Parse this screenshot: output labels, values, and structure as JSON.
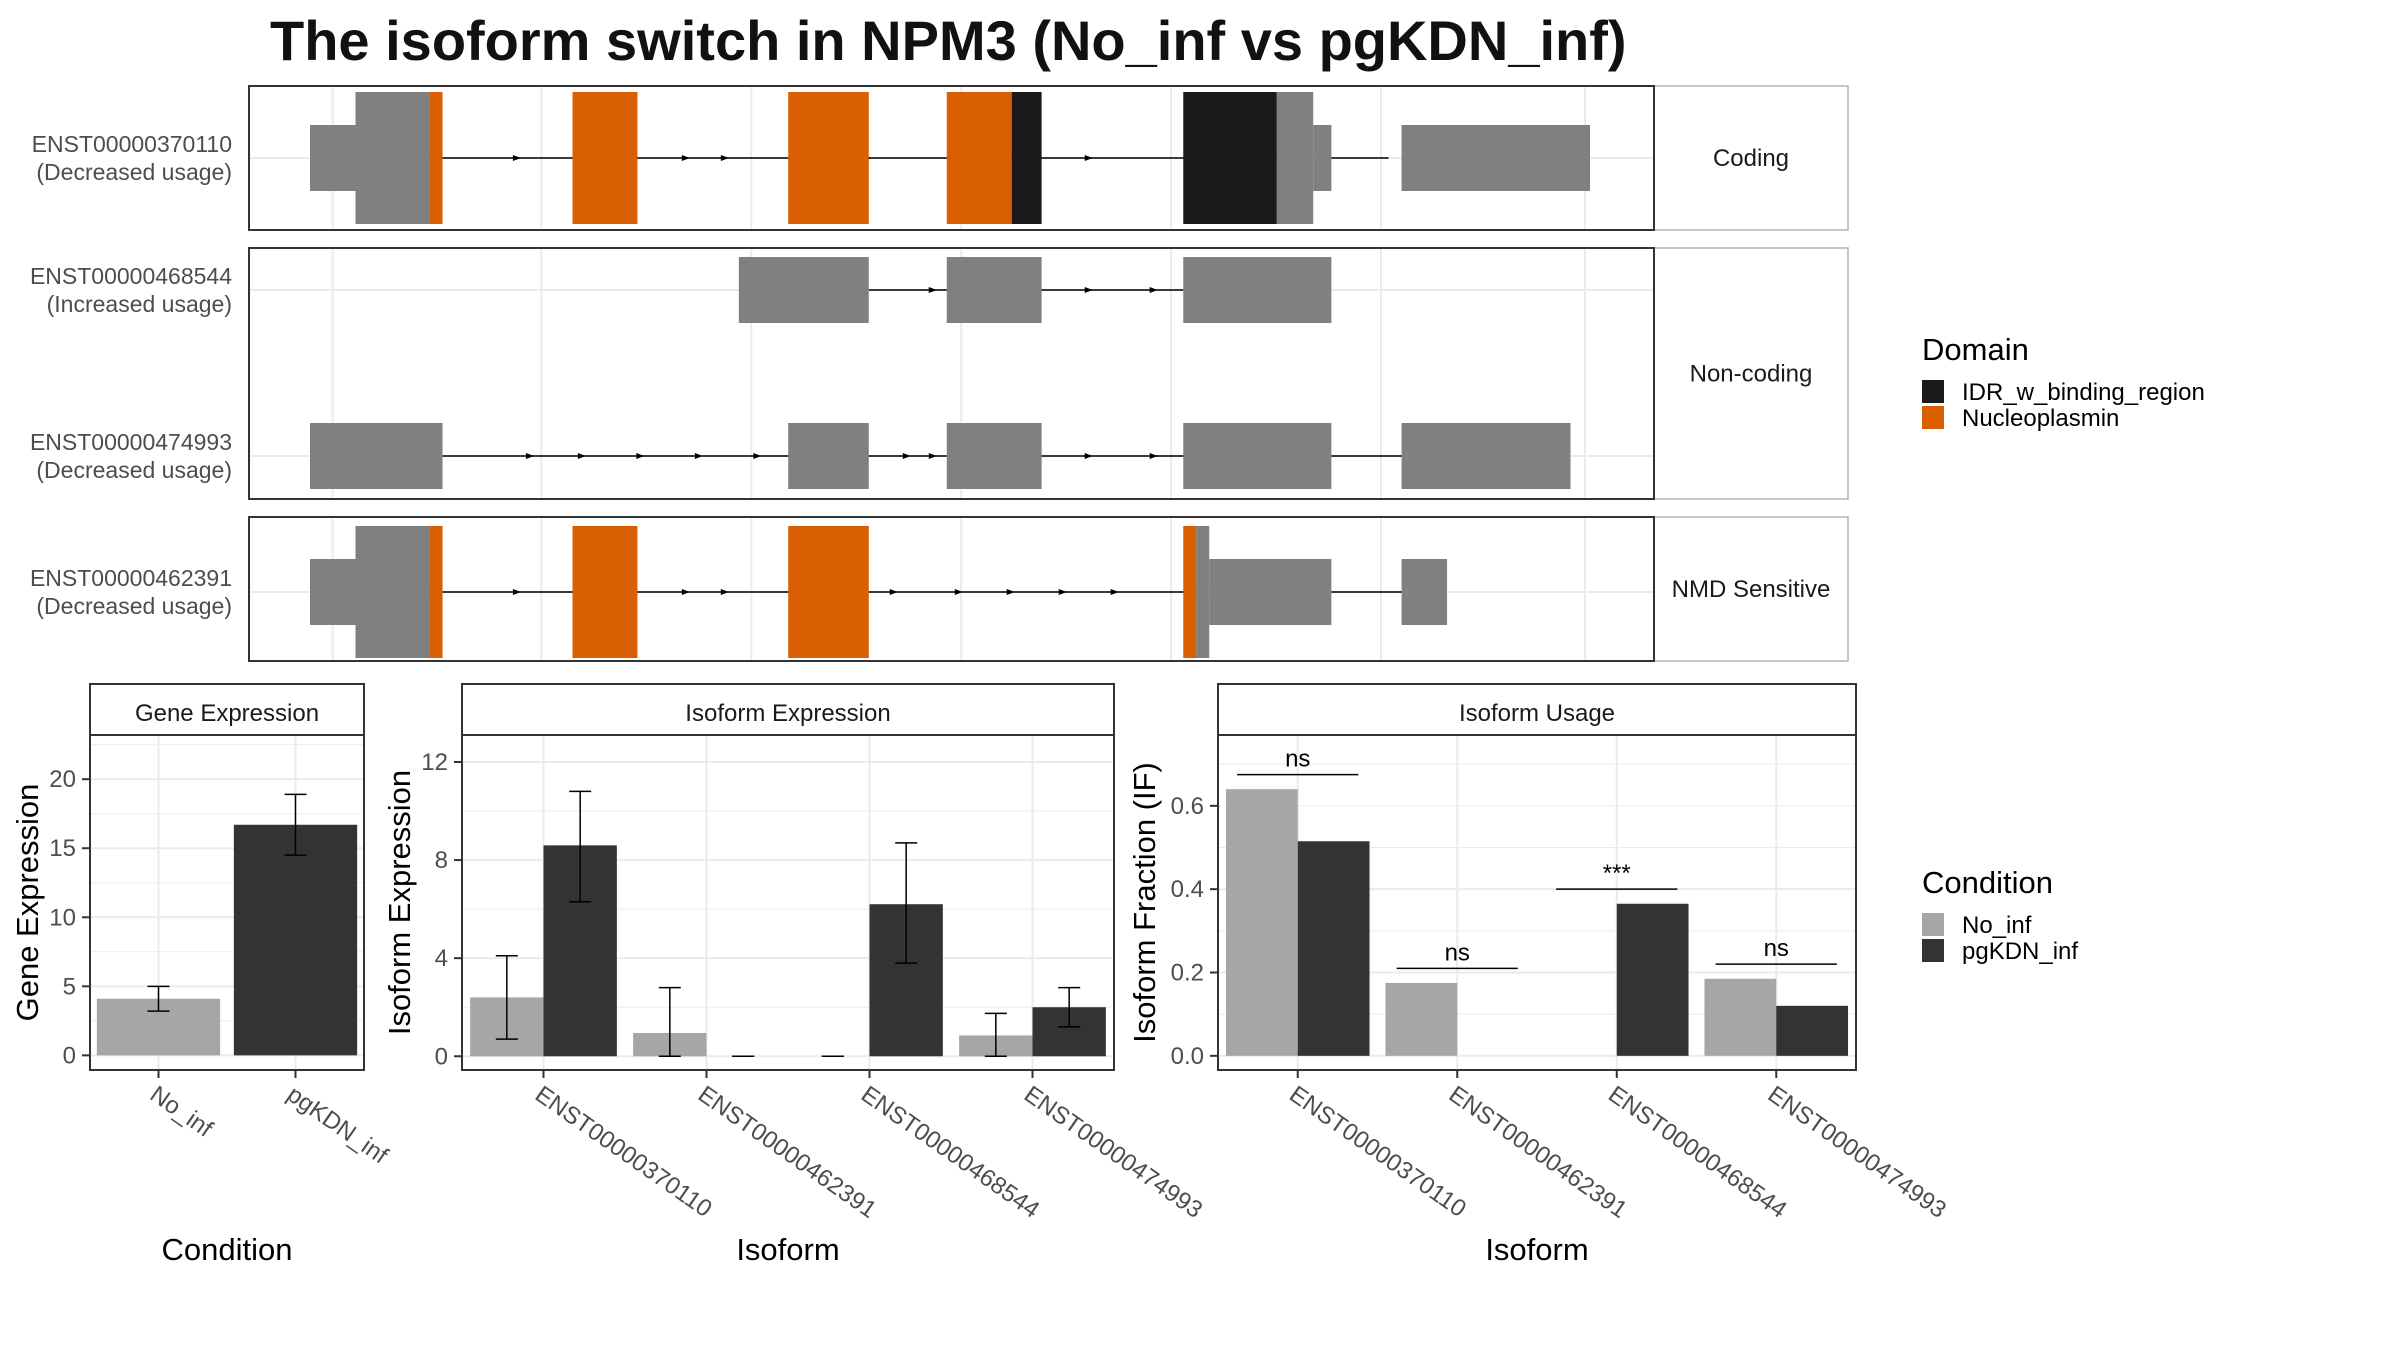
{
  "title": "The isoform switch in NPM3 (No_inf vs pgKDN_inf)",
  "colors": {
    "utr": "#808080",
    "idr": "#1a1a1a",
    "nucleoplasmin": "#d95f02",
    "no_inf": "#a6a6a6",
    "pgkdn_inf": "#333333",
    "frame": "#333333",
    "strip": "#ffffff",
    "grid": "#ebebeb"
  },
  "legends": {
    "domain": {
      "title": "Domain",
      "items": [
        {
          "label": "IDR_w_binding_region",
          "color": "#1a1a1a"
        },
        {
          "label": "Nucleoplasmin",
          "color": "#d95f02"
        }
      ]
    },
    "condition": {
      "title": "Condition",
      "items": [
        {
          "label": "No_inf",
          "color": "#a6a6a6"
        },
        {
          "label": "pgKDN_inf",
          "color": "#333333"
        }
      ]
    }
  },
  "chart_data": [
    {
      "type": "gene_structure",
      "title": "The isoform switch in NPM3 (No_inf vs pgKDN_inf)",
      "x_unit": "relative genomic position",
      "panels": [
        {
          "strip": "Coding",
          "isoforms": [
            {
              "id": "ENST00000370110",
              "label_line1": "ENST00000370110",
              "label_line2": "(Decreased usage)",
              "intron_span": [
                0.04,
                0.87
              ],
              "arrows": [
                0.2,
                0.33,
                0.36,
                0.47,
                0.6,
                0.64
              ],
              "exons": [
                {
                  "start": 0.04,
                  "end": 0.075,
                  "kind": "utr"
                },
                {
                  "start": 0.075,
                  "end": 0.132,
                  "kind": "cds",
                  "domain": "none"
                },
                {
                  "start": 0.132,
                  "end": 0.142,
                  "kind": "cds",
                  "domain": "Nucleoplasmin"
                },
                {
                  "start": 0.242,
                  "end": 0.292,
                  "kind": "cds",
                  "domain": "Nucleoplasmin"
                },
                {
                  "start": 0.408,
                  "end": 0.47,
                  "kind": "cds",
                  "domain": "Nucleoplasmin"
                },
                {
                  "start": 0.53,
                  "end": 0.58,
                  "kind": "cds",
                  "domain": "Nucleoplasmin"
                },
                {
                  "start": 0.58,
                  "end": 0.603,
                  "kind": "cds",
                  "domain": "IDR_w_binding_region"
                },
                {
                  "start": 0.712,
                  "end": 0.784,
                  "kind": "cds",
                  "domain": "IDR_w_binding_region"
                },
                {
                  "start": 0.784,
                  "end": 0.812,
                  "kind": "cds",
                  "domain": "none"
                },
                {
                  "start": 0.812,
                  "end": 0.826,
                  "kind": "utr"
                },
                {
                  "start": 0.88,
                  "end": 1.025,
                  "kind": "utr"
                }
              ]
            }
          ]
        },
        {
          "strip": "Non-coding",
          "isoforms": [
            {
              "id": "ENST00000468544",
              "label_line1": "ENST00000468544",
              "label_line2": "(Increased usage)",
              "intron_span": [
                0.47,
                0.712
              ],
              "arrows": [
                0.52,
                0.64,
                0.69
              ],
              "exons": [
                {
                  "start": 0.37,
                  "end": 0.47,
                  "kind": "noncoding"
                },
                {
                  "start": 0.53,
                  "end": 0.603,
                  "kind": "noncoding"
                },
                {
                  "start": 0.712,
                  "end": 0.826,
                  "kind": "noncoding"
                }
              ]
            },
            {
              "id": "ENST00000474993",
              "label_line1": "ENST00000474993",
              "label_line2": "(Decreased usage)",
              "intron_span": [
                0.142,
                0.88
              ],
              "arrows": [
                0.21,
                0.25,
                0.295,
                0.34,
                0.385,
                0.5,
                0.52,
                0.64,
                0.69
              ],
              "exons": [
                {
                  "start": 0.04,
                  "end": 0.142,
                  "kind": "noncoding"
                },
                {
                  "start": 0.408,
                  "end": 0.47,
                  "kind": "noncoding"
                },
                {
                  "start": 0.53,
                  "end": 0.603,
                  "kind": "noncoding"
                },
                {
                  "start": 0.712,
                  "end": 0.826,
                  "kind": "noncoding"
                },
                {
                  "start": 0.88,
                  "end": 1.01,
                  "kind": "noncoding"
                }
              ]
            }
          ]
        },
        {
          "strip": "NMD Sensitive",
          "isoforms": [
            {
              "id": "ENST00000462391",
              "label_line1": "ENST00000462391",
              "label_line2": "(Decreased usage)",
              "intron_span": [
                0.04,
                0.88
              ],
              "arrows": [
                0.2,
                0.33,
                0.36,
                0.49,
                0.54,
                0.58,
                0.62,
                0.66
              ],
              "exons": [
                {
                  "start": 0.04,
                  "end": 0.075,
                  "kind": "utr"
                },
                {
                  "start": 0.075,
                  "end": 0.132,
                  "kind": "cds",
                  "domain": "none"
                },
                {
                  "start": 0.132,
                  "end": 0.142,
                  "kind": "cds",
                  "domain": "Nucleoplasmin"
                },
                {
                  "start": 0.242,
                  "end": 0.292,
                  "kind": "cds",
                  "domain": "Nucleoplasmin"
                },
                {
                  "start": 0.408,
                  "end": 0.47,
                  "kind": "cds",
                  "domain": "Nucleoplasmin"
                },
                {
                  "start": 0.712,
                  "end": 0.722,
                  "kind": "cds",
                  "domain": "Nucleoplasmin"
                },
                {
                  "start": 0.722,
                  "end": 0.732,
                  "kind": "cds",
                  "domain": "none"
                },
                {
                  "start": 0.732,
                  "end": 0.826,
                  "kind": "utr"
                },
                {
                  "start": 0.88,
                  "end": 0.915,
                  "kind": "utr"
                }
              ]
            }
          ]
        }
      ]
    },
    {
      "type": "bar",
      "title": "Gene Expression",
      "xlabel": "Condition",
      "ylabel": "Gene Expression",
      "categories": [
        "No_inf",
        "pgKDN_inf"
      ],
      "values": [
        4.1,
        16.7
      ],
      "errors": [
        [
          3.2,
          5.0
        ],
        [
          14.5,
          18.9
        ]
      ],
      "ylim": [
        -1.06,
        23.2
      ],
      "yticks": [
        0,
        5,
        10,
        15,
        20
      ],
      "grid": true
    },
    {
      "type": "bar",
      "title": "Isoform Expression",
      "xlabel": "Isoform",
      "ylabel": "Isoform Expression",
      "categories": [
        "ENST00000370110",
        "ENST00000462391",
        "ENST00000468544",
        "ENST00000474993"
      ],
      "series": [
        {
          "name": "No_inf",
          "values": [
            2.4,
            0.95,
            0,
            0.85
          ],
          "errors": [
            [
              0.7,
              4.1
            ],
            [
              0,
              2.8
            ],
            [
              0,
              0
            ],
            [
              0,
              1.75
            ]
          ]
        },
        {
          "name": "pgKDN_inf",
          "values": [
            8.6,
            0,
            6.2,
            2.0
          ],
          "errors": [
            [
              6.3,
              10.8
            ],
            [
              0,
              0
            ],
            [
              3.8,
              8.7
            ],
            [
              1.2,
              2.8
            ]
          ]
        }
      ],
      "ylim": [
        -0.56,
        13.1
      ],
      "yticks": [
        0,
        4,
        8,
        12
      ],
      "grid": true
    },
    {
      "type": "bar",
      "title": "Isoform Usage",
      "xlabel": "Isoform",
      "ylabel": "Isoform Fraction (IF)",
      "categories": [
        "ENST00000370110",
        "ENST00000462391",
        "ENST00000468544",
        "ENST00000474993"
      ],
      "series": [
        {
          "name": "No_inf",
          "values": [
            0.64,
            0.175,
            0,
            0.185
          ]
        },
        {
          "name": "pgKDN_inf",
          "values": [
            0.515,
            0,
            0.365,
            0.12
          ]
        }
      ],
      "annotations": [
        {
          "category": "ENST00000370110",
          "text": "ns",
          "y": 0.675
        },
        {
          "category": "ENST00000462391",
          "text": "ns",
          "y": 0.21
        },
        {
          "category": "ENST00000468544",
          "text": "***",
          "y": 0.4
        },
        {
          "category": "ENST00000474993",
          "text": "ns",
          "y": 0.22
        }
      ],
      "ylim": [
        -0.034,
        0.77
      ],
      "yticks": [
        0.0,
        0.2,
        0.4,
        0.6
      ],
      "ytick_labels": [
        "0.0",
        "0.2",
        "0.4",
        "0.6"
      ],
      "grid": true
    }
  ]
}
